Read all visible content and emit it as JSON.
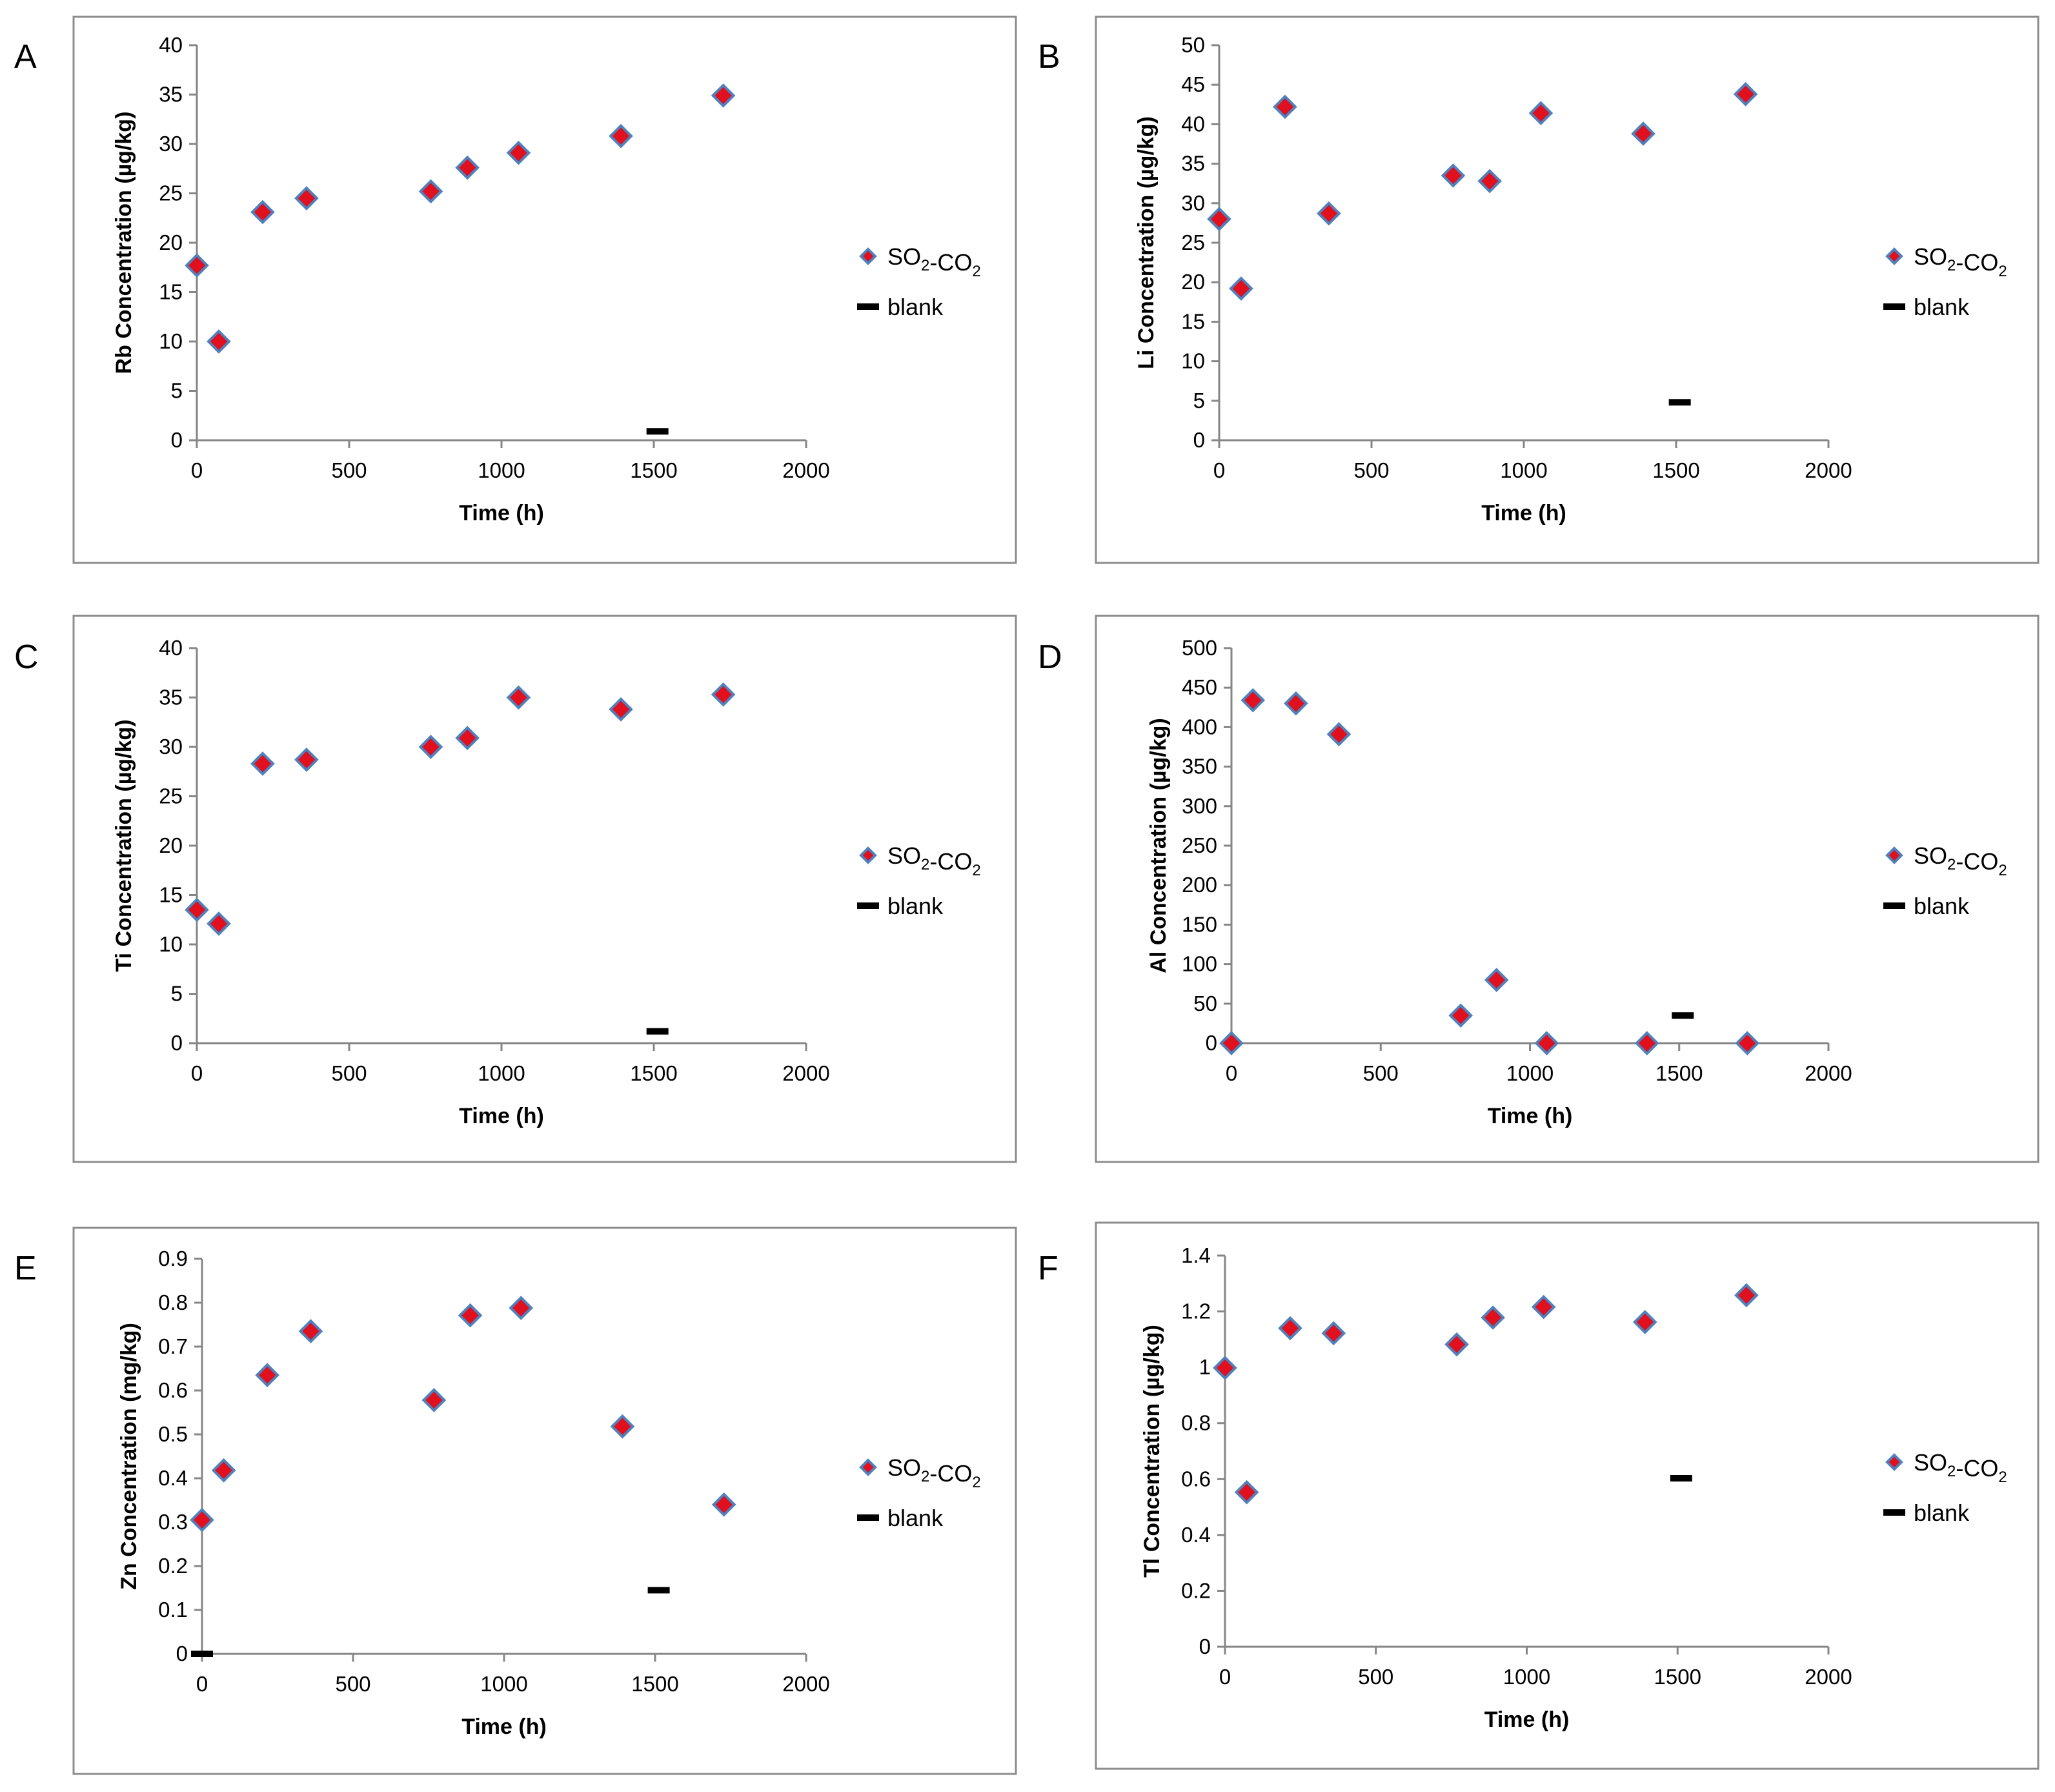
{
  "chart_data": [
    {
      "type": "scatter",
      "panel_label": "A",
      "xlabel": "Time (h)",
      "ylabel": "Rb Concentration (µg/kg)",
      "xlim": [
        0,
        2000
      ],
      "xticks": [
        0,
        500,
        1000,
        1500,
        2000
      ],
      "ylim": [
        0,
        40
      ],
      "yticks": [
        0,
        5,
        10,
        15,
        20,
        25,
        30,
        35,
        40
      ],
      "grid": false,
      "legend_position": "right",
      "series": [
        {
          "name": "SO2-CO2",
          "marker": "diamond",
          "color": "#e0101e",
          "edge_color": "#4f81bd",
          "x": [
            0,
            72,
            216,
            360,
            768,
            888,
            1056,
            1392,
            1728
          ],
          "y": [
            17.7,
            10.0,
            23.1,
            24.5,
            25.2,
            27.6,
            29.1,
            30.8,
            34.9
          ]
        },
        {
          "name": "blank",
          "marker": "dash",
          "color": "#000000",
          "x": [
            1512
          ],
          "y": [
            0.9
          ]
        }
      ]
    },
    {
      "type": "scatter",
      "panel_label": "B",
      "xlabel": "Time (h)",
      "ylabel": "Li Concentration (µg/kg)",
      "xlim": [
        0,
        2000
      ],
      "xticks": [
        0,
        500,
        1000,
        1500,
        2000
      ],
      "ylim": [
        0,
        50
      ],
      "yticks": [
        0,
        5,
        10,
        15,
        20,
        25,
        30,
        35,
        40,
        45,
        50
      ],
      "grid": false,
      "legend_position": "right",
      "series": [
        {
          "name": "SO2-CO2",
          "marker": "diamond",
          "color": "#e0101e",
          "edge_color": "#4f81bd",
          "x": [
            0,
            72,
            216,
            360,
            768,
            888,
            1056,
            1392,
            1728
          ],
          "y": [
            28.0,
            19.2,
            42.2,
            28.7,
            33.5,
            32.8,
            41.4,
            38.8,
            43.8
          ]
        },
        {
          "name": "blank",
          "marker": "dash",
          "color": "#000000",
          "x": [
            1512
          ],
          "y": [
            4.8
          ]
        }
      ]
    },
    {
      "type": "scatter",
      "panel_label": "C",
      "xlabel": "Time (h)",
      "ylabel": "Ti Concentration (µg/kg)",
      "xlim": [
        0,
        2000
      ],
      "xticks": [
        0,
        500,
        1000,
        1500,
        2000
      ],
      "ylim": [
        0,
        40
      ],
      "yticks": [
        0,
        5,
        10,
        15,
        20,
        25,
        30,
        35,
        40
      ],
      "grid": false,
      "legend_position": "right",
      "series": [
        {
          "name": "SO2-CO2",
          "marker": "diamond",
          "color": "#e0101e",
          "edge_color": "#4f81bd",
          "x": [
            0,
            72,
            216,
            360,
            768,
            888,
            1056,
            1392,
            1728
          ],
          "y": [
            13.5,
            12.1,
            28.3,
            28.7,
            30.0,
            30.9,
            35.0,
            33.8,
            35.3
          ]
        },
        {
          "name": "blank",
          "marker": "dash",
          "color": "#000000",
          "x": [
            1512
          ],
          "y": [
            1.2
          ]
        }
      ]
    },
    {
      "type": "scatter",
      "panel_label": "D",
      "xlabel": "Time (h)",
      "ylabel": "Al Concentration  (µg/kg)",
      "xlim": [
        0,
        2000
      ],
      "xticks": [
        0,
        500,
        1000,
        1500,
        2000
      ],
      "ylim": [
        0,
        500
      ],
      "yticks": [
        0,
        50,
        100,
        150,
        200,
        250,
        300,
        350,
        400,
        450,
        500
      ],
      "grid": false,
      "legend_position": "right",
      "series": [
        {
          "name": "SO2-CO2",
          "marker": "diamond",
          "color": "#e0101e",
          "edge_color": "#4f81bd",
          "x": [
            0,
            72,
            216,
            360,
            768,
            888,
            1056,
            1392,
            1728
          ],
          "y": [
            0,
            434,
            430,
            391,
            35,
            80,
            0,
            0,
            0
          ]
        },
        {
          "name": "blank",
          "marker": "dash",
          "color": "#000000",
          "x": [
            1512
          ],
          "y": [
            35
          ]
        }
      ]
    },
    {
      "type": "scatter",
      "panel_label": "E",
      "xlabel": "Time (h)",
      "ylabel": "Zn Concentration  (mg/kg)",
      "xlim": [
        0,
        2000
      ],
      "xticks": [
        0,
        500,
        1000,
        1500,
        2000
      ],
      "ylim": [
        0,
        0.9
      ],
      "yticks": [
        0,
        0.1,
        0.2,
        0.3,
        0.4,
        0.5,
        0.6,
        0.7,
        0.8,
        0.9
      ],
      "grid": false,
      "legend_position": "right",
      "series": [
        {
          "name": "SO2-CO2",
          "marker": "diamond",
          "color": "#e0101e",
          "edge_color": "#4f81bd",
          "x": [
            0,
            72,
            216,
            360,
            768,
            888,
            1056,
            1392,
            1728
          ],
          "y": [
            0.305,
            0.418,
            0.635,
            0.735,
            0.578,
            0.771,
            0.788,
            0.518,
            0.34
          ]
        },
        {
          "name": "blank",
          "marker": "dash",
          "color": "#000000",
          "x": [
            0,
            1512
          ],
          "y": [
            0.0,
            0.145
          ]
        }
      ]
    },
    {
      "type": "scatter",
      "panel_label": "F",
      "xlabel": "Time (h)",
      "ylabel": "Tl Concentration (µg/kg)",
      "xlim": [
        0,
        2000
      ],
      "xticks": [
        0,
        500,
        1000,
        1500,
        2000
      ],
      "ylim": [
        0,
        1.4
      ],
      "yticks": [
        0,
        0.2,
        0.4,
        0.6,
        0.8,
        1,
        1.2,
        1.4
      ],
      "grid": false,
      "legend_position": "right",
      "series": [
        {
          "name": "SO2-CO2",
          "marker": "diamond",
          "color": "#e0101e",
          "edge_color": "#4f81bd",
          "x": [
            0,
            72,
            216,
            360,
            768,
            888,
            1056,
            1392,
            1728
          ],
          "y": [
            0.998,
            0.553,
            1.14,
            1.122,
            1.082,
            1.178,
            1.216,
            1.162,
            1.258
          ]
        },
        {
          "name": "blank",
          "marker": "dash",
          "color": "#000000",
          "x": [
            1512
          ],
          "y": [
            0.603
          ]
        }
      ]
    }
  ]
}
